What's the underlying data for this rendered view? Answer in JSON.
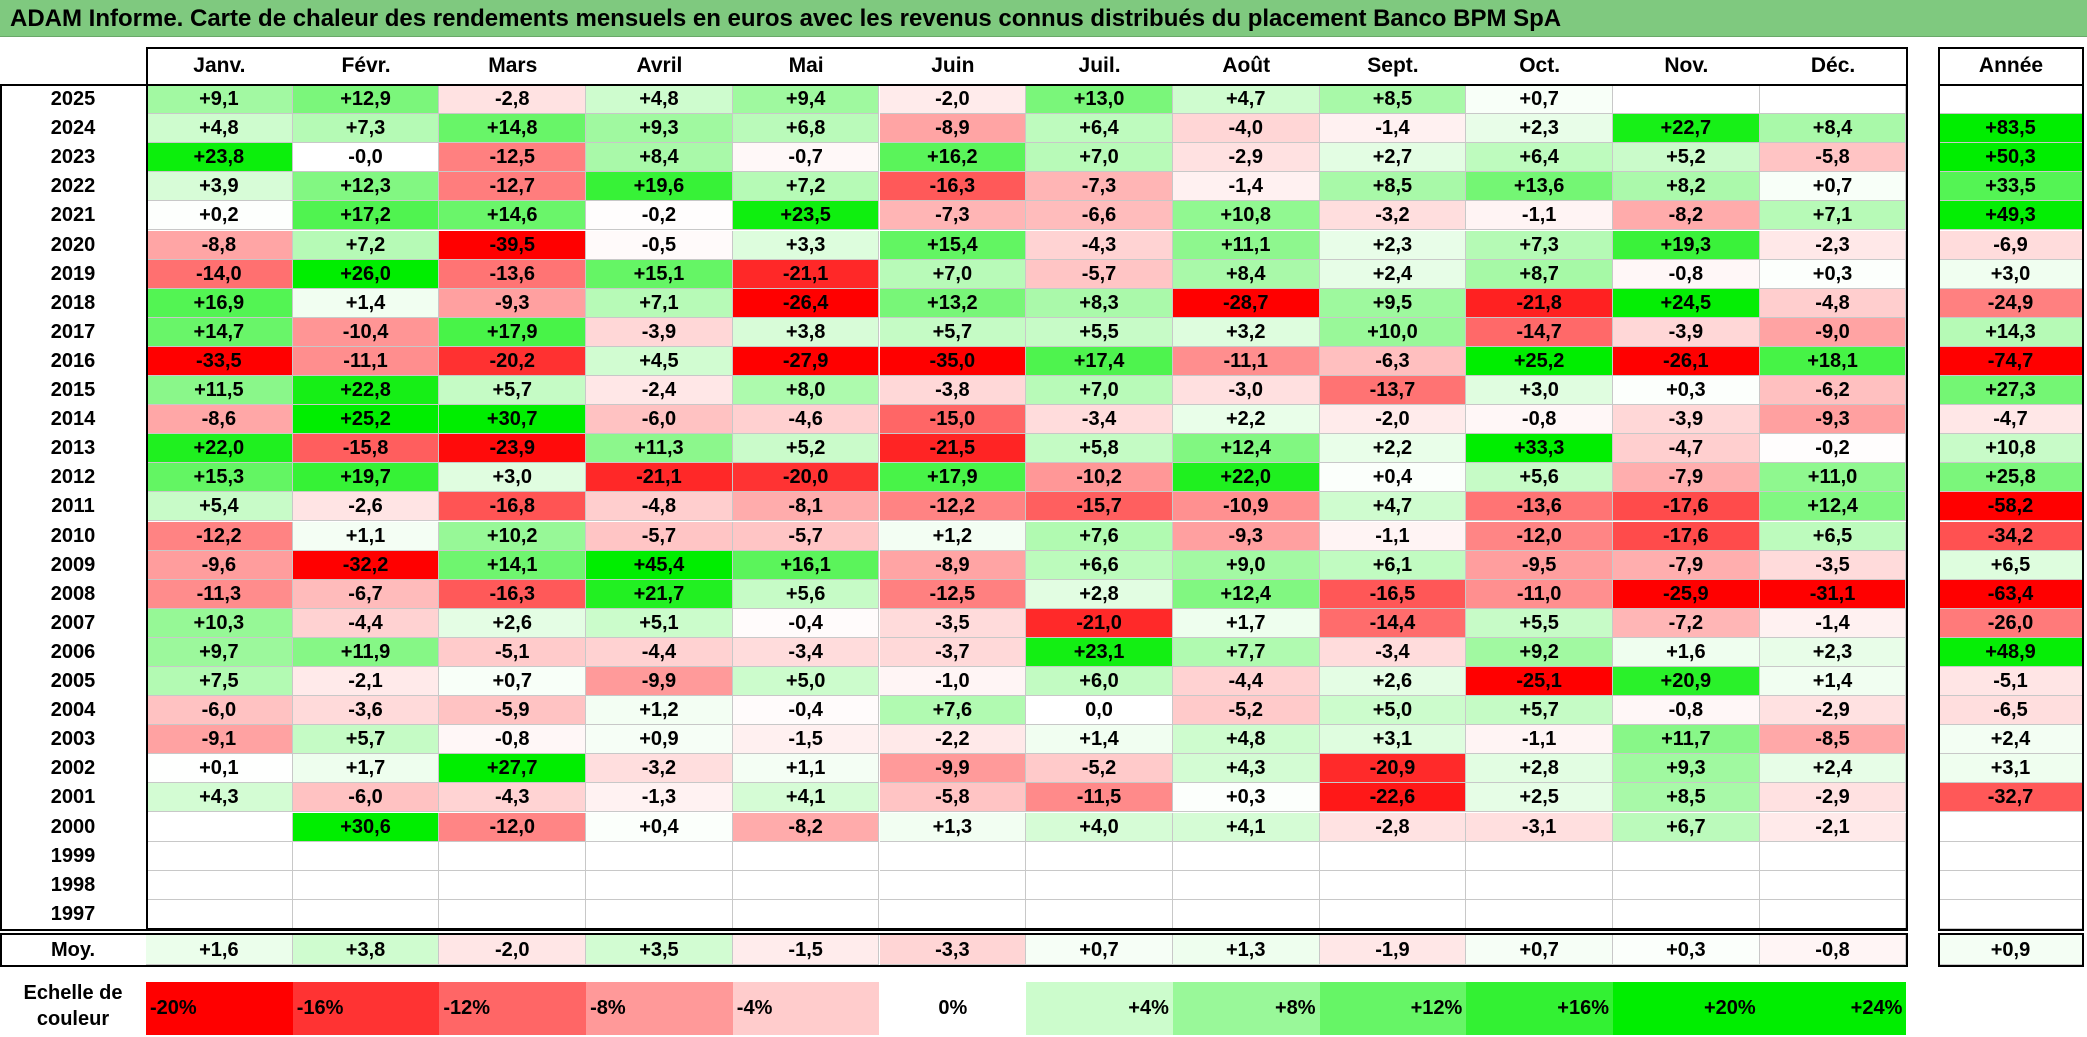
{
  "title": "ADAM Informe. Carte de chaleur des rendements mensuels en euros avec les revenus connus distribués du placement Banco BPM SpA",
  "chart_data": {
    "type": "heatmap",
    "title": "ADAM Informe. Carte de chaleur des rendements mensuels en euros avec les revenus connus distribués du placement Banco BPM SpA",
    "columns": [
      "Janv.",
      "Févr.",
      "Mars",
      "Avril",
      "Mai",
      "Juin",
      "Juil.",
      "Août",
      "Sept.",
      "Oct.",
      "Nov.",
      "Déc."
    ],
    "year_column_label": "Année",
    "rows": [
      {
        "year": "2025",
        "values": [
          "+9,1",
          "+12,9",
          "-2,8",
          "+4,8",
          "+9,4",
          "-2,0",
          "+13,0",
          "+4,7",
          "+8,5",
          "+0,7",
          "",
          ""
        ],
        "annual": ""
      },
      {
        "year": "2024",
        "values": [
          "+4,8",
          "+7,3",
          "+14,8",
          "+9,3",
          "+6,8",
          "-8,9",
          "+6,4",
          "-4,0",
          "-1,4",
          "+2,3",
          "+22,7",
          "+8,4"
        ],
        "annual": "+83,5"
      },
      {
        "year": "2023",
        "values": [
          "+23,8",
          "-0,0",
          "-12,5",
          "+8,4",
          "-0,7",
          "+16,2",
          "+7,0",
          "-2,9",
          "+2,7",
          "+6,4",
          "+5,2",
          "-5,8"
        ],
        "annual": "+50,3"
      },
      {
        "year": "2022",
        "values": [
          "+3,9",
          "+12,3",
          "-12,7",
          "+19,6",
          "+7,2",
          "-16,3",
          "-7,3",
          "-1,4",
          "+8,5",
          "+13,6",
          "+8,2",
          "+0,7"
        ],
        "annual": "+33,5"
      },
      {
        "year": "2021",
        "values": [
          "+0,2",
          "+17,2",
          "+14,6",
          "-0,2",
          "+23,5",
          "-7,3",
          "-6,6",
          "+10,8",
          "-3,2",
          "-1,1",
          "-8,2",
          "+7,1"
        ],
        "annual": "+49,3"
      },
      {
        "year": "2020",
        "values": [
          "-8,8",
          "+7,2",
          "-39,5",
          "-0,5",
          "+3,3",
          "+15,4",
          "-4,3",
          "+11,1",
          "+2,3",
          "+7,3",
          "+19,3",
          "-2,3"
        ],
        "annual": "-6,9"
      },
      {
        "year": "2019",
        "values": [
          "-14,0",
          "+26,0",
          "-13,6",
          "+15,1",
          "-21,1",
          "+7,0",
          "-5,7",
          "+8,4",
          "+2,4",
          "+8,7",
          "-0,8",
          "+0,3"
        ],
        "annual": "+3,0"
      },
      {
        "year": "2018",
        "values": [
          "+16,9",
          "+1,4",
          "-9,3",
          "+7,1",
          "-26,4",
          "+13,2",
          "+8,3",
          "-28,7",
          "+9,5",
          "-21,8",
          "+24,5",
          "-4,8"
        ],
        "annual": "-24,9"
      },
      {
        "year": "2017",
        "values": [
          "+14,7",
          "-10,4",
          "+17,9",
          "-3,9",
          "+3,8",
          "+5,7",
          "+5,5",
          "+3,2",
          "+10,0",
          "-14,7",
          "-3,9",
          "-9,0"
        ],
        "annual": "+14,3"
      },
      {
        "year": "2016",
        "values": [
          "-33,5",
          "-11,1",
          "-20,2",
          "+4,5",
          "-27,9",
          "-35,0",
          "+17,4",
          "-11,1",
          "-6,3",
          "+25,2",
          "-26,1",
          "+18,1"
        ],
        "annual": "-74,7"
      },
      {
        "year": "2015",
        "values": [
          "+11,5",
          "+22,8",
          "+5,7",
          "-2,4",
          "+8,0",
          "-3,8",
          "+7,0",
          "-3,0",
          "-13,7",
          "+3,0",
          "+0,3",
          "-6,2"
        ],
        "annual": "+27,3"
      },
      {
        "year": "2014",
        "values": [
          "-8,6",
          "+25,2",
          "+30,7",
          "-6,0",
          "-4,6",
          "-15,0",
          "-3,4",
          "+2,2",
          "-2,0",
          "-0,8",
          "-3,9",
          "-9,3"
        ],
        "annual": "-4,7"
      },
      {
        "year": "2013",
        "values": [
          "+22,0",
          "-15,8",
          "-23,9",
          "+11,3",
          "+5,2",
          "-21,5",
          "+5,8",
          "+12,4",
          "+2,2",
          "+33,3",
          "-4,7",
          "-0,2"
        ],
        "annual": "+10,8"
      },
      {
        "year": "2012",
        "values": [
          "+15,3",
          "+19,7",
          "+3,0",
          "-21,1",
          "-20,0",
          "+17,9",
          "-10,2",
          "+22,0",
          "+0,4",
          "+5,6",
          "-7,9",
          "+11,0"
        ],
        "annual": "+25,8"
      },
      {
        "year": "2011",
        "values": [
          "+5,4",
          "-2,6",
          "-16,8",
          "-4,8",
          "-8,1",
          "-12,2",
          "-15,7",
          "-10,9",
          "+4,7",
          "-13,6",
          "-17,6",
          "+12,4"
        ],
        "annual": "-58,2"
      },
      {
        "year": "2010",
        "values": [
          "-12,2",
          "+1,1",
          "+10,2",
          "-5,7",
          "-5,7",
          "+1,2",
          "+7,6",
          "-9,3",
          "-1,1",
          "-12,0",
          "-17,6",
          "+6,5"
        ],
        "annual": "-34,2"
      },
      {
        "year": "2009",
        "values": [
          "-9,6",
          "-32,2",
          "+14,1",
          "+45,4",
          "+16,1",
          "-8,9",
          "+6,6",
          "+9,0",
          "+6,1",
          "-9,5",
          "-7,9",
          "-3,5"
        ],
        "annual": "+6,5"
      },
      {
        "year": "2008",
        "values": [
          "-11,3",
          "-6,7",
          "-16,3",
          "+21,7",
          "+5,6",
          "-12,5",
          "+2,8",
          "+12,4",
          "-16,5",
          "-11,0",
          "-25,9",
          "-31,1"
        ],
        "annual": "-63,4"
      },
      {
        "year": "2007",
        "values": [
          "+10,3",
          "-4,4",
          "+2,6",
          "+5,1",
          "-0,4",
          "-3,5",
          "-21,0",
          "+1,7",
          "-14,4",
          "+5,5",
          "-7,2",
          "-1,4"
        ],
        "annual": "-26,0"
      },
      {
        "year": "2006",
        "values": [
          "+9,7",
          "+11,9",
          "-5,1",
          "-4,4",
          "-3,4",
          "-3,7",
          "+23,1",
          "+7,7",
          "-3,4",
          "+9,2",
          "+1,6",
          "+2,3"
        ],
        "annual": "+48,9"
      },
      {
        "year": "2005",
        "values": [
          "+7,5",
          "-2,1",
          "+0,7",
          "-9,9",
          "+5,0",
          "-1,0",
          "+6,0",
          "-4,4",
          "+2,6",
          "-25,1",
          "+20,9",
          "+1,4"
        ],
        "annual": "-5,1"
      },
      {
        "year": "2004",
        "values": [
          "-6,0",
          "-3,6",
          "-5,9",
          "+1,2",
          "-0,4",
          "+7,6",
          "0,0",
          "-5,2",
          "+5,0",
          "+5,7",
          "-0,8",
          "-2,9"
        ],
        "annual": "-6,5"
      },
      {
        "year": "2003",
        "values": [
          "-9,1",
          "+5,7",
          "-0,8",
          "+0,9",
          "-1,5",
          "-2,2",
          "+1,4",
          "+4,8",
          "+3,1",
          "-1,1",
          "+11,7",
          "-8,5"
        ],
        "annual": "+2,4"
      },
      {
        "year": "2002",
        "values": [
          "+0,1",
          "+1,7",
          "+27,7",
          "-3,2",
          "+1,1",
          "-9,9",
          "-5,2",
          "+4,3",
          "-20,9",
          "+2,8",
          "+9,3",
          "+2,4"
        ],
        "annual": "+3,1"
      },
      {
        "year": "2001",
        "values": [
          "+4,3",
          "-6,0",
          "-4,3",
          "-1,3",
          "+4,1",
          "-5,8",
          "-11,5",
          "+0,3",
          "-22,6",
          "+2,5",
          "+8,5",
          "-2,9"
        ],
        "annual": "-32,7"
      },
      {
        "year": "2000",
        "values": [
          "",
          "+30,6",
          "-12,0",
          "+0,4",
          "-8,2",
          "+1,3",
          "+4,0",
          "+4,1",
          "-2,8",
          "-3,1",
          "+6,7",
          "-2,1"
        ],
        "annual": ""
      },
      {
        "year": "1999",
        "values": [
          "",
          "",
          "",
          "",
          "",
          "",
          "",
          "",
          "",
          "",
          "",
          ""
        ],
        "annual": ""
      },
      {
        "year": "1998",
        "values": [
          "",
          "",
          "",
          "",
          "",
          "",
          "",
          "",
          "",
          "",
          "",
          ""
        ],
        "annual": ""
      },
      {
        "year": "1997",
        "values": [
          "",
          "",
          "",
          "",
          "",
          "",
          "",
          "",
          "",
          "",
          "",
          ""
        ],
        "annual": ""
      }
    ],
    "average": {
      "label": "Moy.",
      "values": [
        "+1,6",
        "+3,8",
        "-2,0",
        "+3,5",
        "-1,5",
        "-3,3",
        "+0,7",
        "+1,3",
        "-1,9",
        "+0,7",
        "+0,3",
        "-0,8"
      ],
      "annual": "+0,9"
    },
    "scale": {
      "label": "Echelle de couleur",
      "steps": [
        "-20%",
        "-16%",
        "-12%",
        "-8%",
        "-4%",
        "0%",
        "+4%",
        "+8%",
        "+12%",
        "+16%",
        "+20%",
        "+24%"
      ]
    },
    "colors": {
      "negative_max": "#ff0000",
      "neutral": "#ffffff",
      "positive_max": "#00ee00",
      "title_bg": "#7fc97f"
    }
  }
}
